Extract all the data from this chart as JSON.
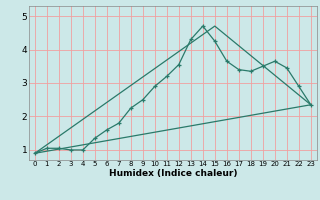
{
  "title": "",
  "xlabel": "Humidex (Indice chaleur)",
  "bg_color": "#cce8e8",
  "grid_color": "#f0a0a0",
  "line_color": "#2a7a6a",
  "x_ticks": [
    0,
    1,
    2,
    3,
    4,
    5,
    6,
    7,
    8,
    9,
    10,
    11,
    12,
    13,
    14,
    15,
    16,
    17,
    18,
    19,
    20,
    21,
    22,
    23
  ],
  "y_ticks": [
    1,
    2,
    3,
    4,
    5
  ],
  "xlim": [
    -0.5,
    23.5
  ],
  "ylim": [
    0.7,
    5.3
  ],
  "line1_x": [
    0,
    1,
    2,
    3,
    4,
    5,
    6,
    7,
    8,
    9,
    10,
    11,
    12,
    13,
    14,
    15,
    16,
    17,
    18,
    19,
    20,
    21,
    22,
    23
  ],
  "line1_y": [
    0.9,
    1.05,
    1.05,
    1.0,
    1.0,
    1.35,
    1.6,
    1.8,
    2.25,
    2.5,
    2.9,
    3.2,
    3.55,
    4.3,
    4.7,
    4.25,
    3.65,
    3.4,
    3.35,
    3.5,
    3.65,
    3.45,
    2.9,
    2.35
  ],
  "line2_x": [
    0,
    23
  ],
  "line2_y": [
    0.9,
    2.35
  ],
  "line3_x": [
    0,
    15,
    23
  ],
  "line3_y": [
    0.9,
    4.7,
    2.35
  ]
}
